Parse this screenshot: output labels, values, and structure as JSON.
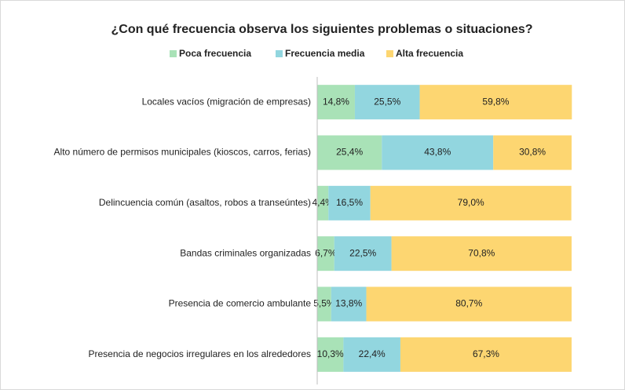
{
  "chart_data": {
    "type": "stacked-bar-horizontal",
    "title": "¿Con qué frecuencia observa los siguientes problemas o situaciones?",
    "categories": [
      "Locales vacíos (migración de empresas)",
      "Alto número de permisos municipales (kioscos, carros, ferias)",
      "Delincuencia común (asaltos, robos a transeúntes)",
      "Bandas criminales organizadas",
      "Presencia de comercio ambulante",
      "Presencia de negocios irregulares en los alrededores"
    ],
    "series": [
      {
        "name": "Poca frecuencia",
        "color": "#a9e2b7",
        "values": [
          14.8,
          25.4,
          4.4,
          6.7,
          5.5,
          10.3
        ],
        "value_labels": [
          "14,8%",
          "25,4%",
          "4,4%",
          "6,7%",
          "5,5%",
          "10,3%"
        ]
      },
      {
        "name": "Frecuencia media",
        "color": "#92d6df",
        "values": [
          25.5,
          43.8,
          16.5,
          22.5,
          13.8,
          22.4
        ],
        "value_labels": [
          "25,5%",
          "43,8%",
          "16,5%",
          "22,5%",
          "13,8%",
          "22,4%"
        ]
      },
      {
        "name": "Alta frecuencia",
        "color": "#fdd671",
        "values": [
          59.8,
          30.8,
          79.0,
          70.8,
          80.7,
          67.3
        ],
        "value_labels": [
          "59,8%",
          "30,8%",
          "79,0%",
          "70,8%",
          "80,7%",
          "67,3%"
        ]
      }
    ],
    "xlim": [
      0,
      100
    ],
    "legend": "top"
  }
}
